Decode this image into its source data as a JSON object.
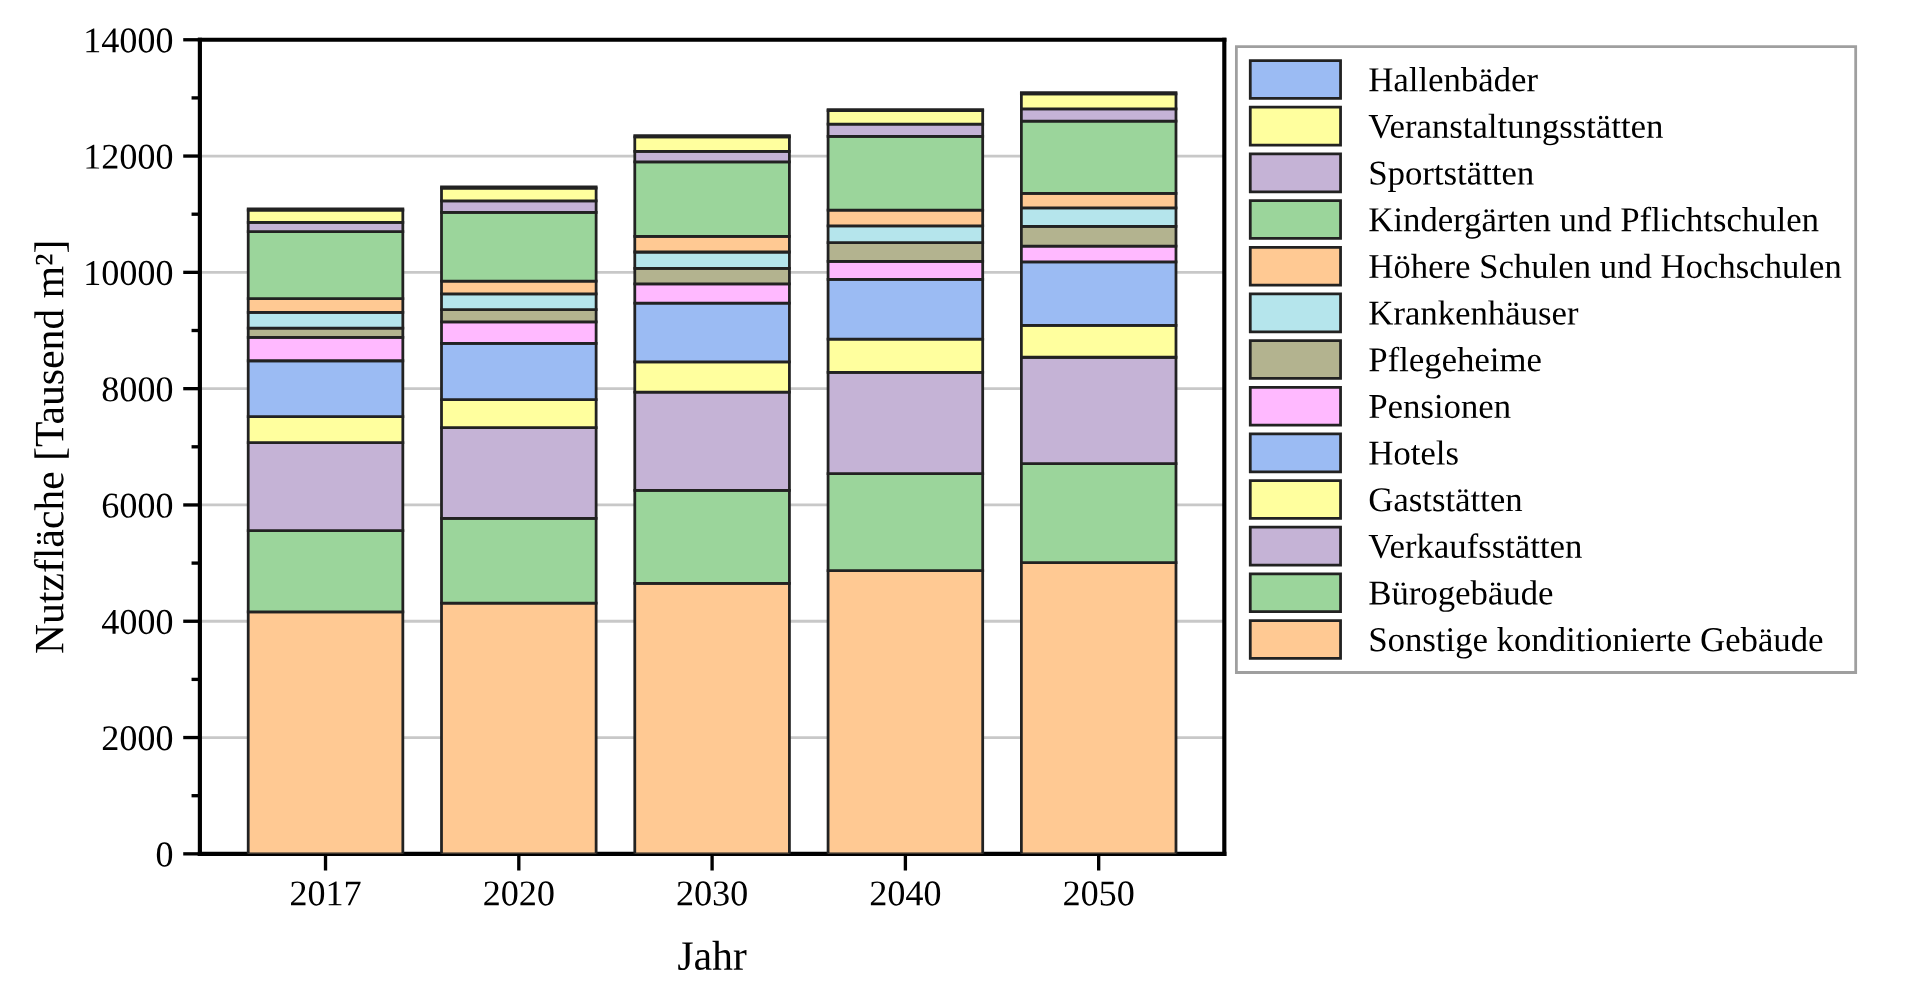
{
  "chart_data": {
    "type": "bar",
    "stacked": true,
    "xlabel": "Jahr",
    "ylabel": "Nutzfläche [Tausend m²]",
    "categories": [
      "2017",
      "2020",
      "2030",
      "2040",
      "2050"
    ],
    "ylim": [
      0,
      14000
    ],
    "yticks": [
      0,
      2000,
      4000,
      6000,
      8000,
      10000,
      12000,
      14000
    ],
    "grid": "y",
    "legend": "right",
    "series": [
      {
        "name": "Sonstige konditionierte Gebäude",
        "color": "#ffc993",
        "values": [
          4160,
          4310,
          4650,
          4870,
          5010
        ]
      },
      {
        "name": "Bürogebäude",
        "color": "#9bd59b",
        "values": [
          1400,
          1460,
          1600,
          1670,
          1700
        ]
      },
      {
        "name": "Verkaufsstätten",
        "color": "#c5b3d6",
        "values": [
          1510,
          1560,
          1690,
          1740,
          1830
        ]
      },
      {
        "name": "Gaststätten",
        "color": "#ffff9e",
        "values": [
          450,
          480,
          520,
          570,
          550
        ]
      },
      {
        "name": "Hotels",
        "color": "#9bbbf3",
        "values": [
          960,
          970,
          1010,
          1030,
          1090
        ]
      },
      {
        "name": "Pensionen",
        "color": "#ffb9ff",
        "values": [
          400,
          370,
          330,
          310,
          270
        ]
      },
      {
        "name": "Pflegeheime",
        "color": "#b3b38f",
        "values": [
          160,
          210,
          270,
          320,
          340
        ]
      },
      {
        "name": "Krankenhäuser",
        "color": "#b5e5ec",
        "values": [
          270,
          270,
          280,
          290,
          320
        ]
      },
      {
        "name": "Höhere Schulen und Hochschulen",
        "color": "#ffc993",
        "values": [
          240,
          220,
          270,
          270,
          250
        ]
      },
      {
        "name": "Kindergärten und Pflichtschulen",
        "color": "#9bd59b",
        "values": [
          1150,
          1180,
          1280,
          1270,
          1240
        ]
      },
      {
        "name": "Sportstätten",
        "color": "#c5b3d6",
        "values": [
          160,
          200,
          180,
          210,
          210
        ]
      },
      {
        "name": "Veranstaltungsstätten",
        "color": "#ffff9e",
        "values": [
          210,
          220,
          250,
          230,
          260
        ]
      },
      {
        "name": "Hallenbäder",
        "color": "#9bbbf3",
        "values": [
          20,
          20,
          20,
          20,
          20
        ]
      }
    ]
  }
}
